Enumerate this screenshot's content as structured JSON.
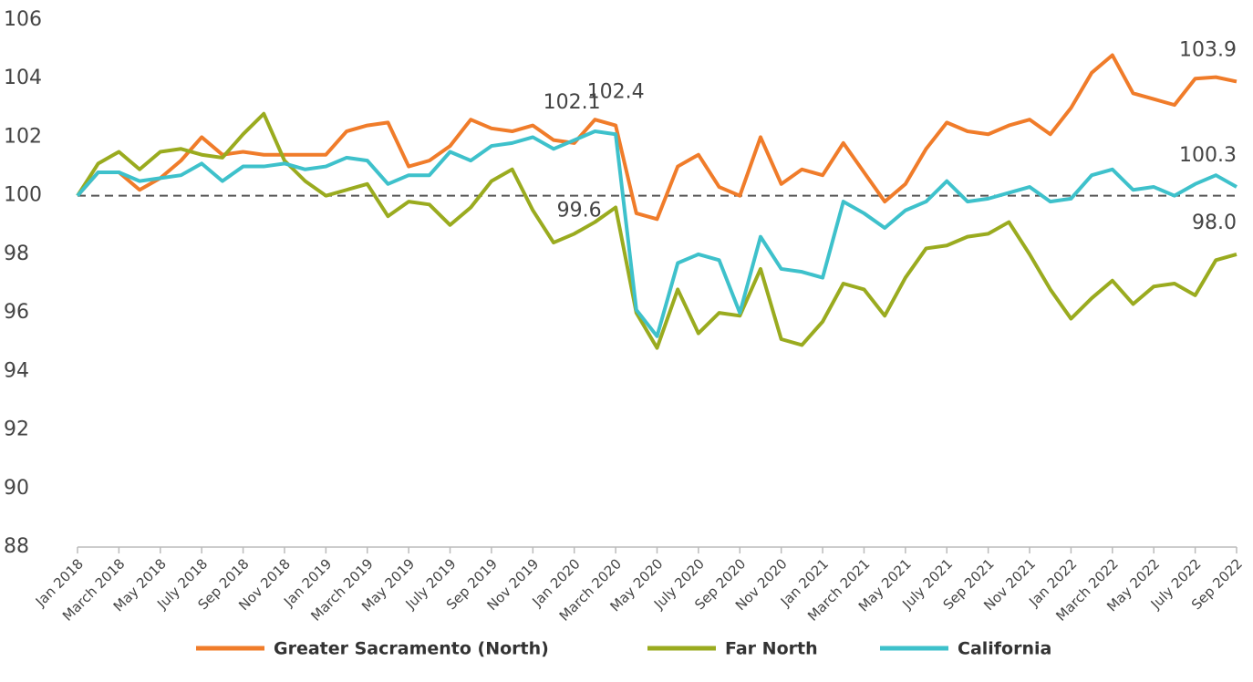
{
  "chart_data": {
    "type": "line",
    "categories": [
      "Jan 2018",
      null,
      "March 2018",
      null,
      "May 2018",
      null,
      "July 2018",
      null,
      "Sep 2018",
      null,
      "Nov 2018",
      null,
      "Jan 2019",
      null,
      "March 2019",
      null,
      "May 2019",
      null,
      "July 2019",
      null,
      "Sep 2019",
      null,
      "Nov 2019",
      null,
      "Jan 2020",
      null,
      "March 2020",
      null,
      "May 2020",
      null,
      "July 2020",
      null,
      "Sep 2020",
      null,
      "Nov 2020",
      null,
      "Jan 2021",
      null,
      "March 2021",
      null,
      "May 2021",
      null,
      "July 2021",
      null,
      "Sep 2021",
      null,
      "Nov 2021",
      null,
      "Jan 2022",
      null,
      "March 2022",
      null,
      "May 2022",
      null,
      "July 2022",
      null,
      "Sep 2022"
    ],
    "series": [
      {
        "name": "Greater Sacramento (North)",
        "color": "#f07c2a",
        "values": [
          100,
          100.8,
          100.8,
          100.2,
          100.6,
          101.2,
          102.0,
          101.4,
          101.5,
          101.4,
          101.4,
          101.4,
          101.4,
          102.2,
          102.4,
          102.5,
          101.0,
          101.2,
          101.7,
          102.6,
          102.3,
          102.2,
          102.4,
          101.9,
          101.8,
          102.6,
          102.4,
          99.4,
          99.2,
          101.0,
          101.4,
          100.3,
          100.0,
          102.0,
          100.4,
          100.9,
          100.7,
          101.8,
          100.8,
          99.8,
          100.4,
          101.6,
          102.5,
          102.2,
          102.1,
          102.4,
          102.6,
          102.1,
          103.0,
          104.2,
          104.8,
          103.5,
          103.3,
          103.1,
          104.0,
          104.05,
          103.9
        ],
        "value_labels": [
          null,
          null,
          null,
          null,
          null,
          null,
          null,
          null,
          null,
          null,
          null,
          null,
          null,
          null,
          null,
          null,
          null,
          null,
          null,
          null,
          null,
          null,
          null,
          null,
          null,
          null,
          "102.4",
          null,
          null,
          null,
          null,
          null,
          null,
          null,
          null,
          null,
          null,
          null,
          null,
          null,
          null,
          null,
          null,
          null,
          null,
          null,
          null,
          null,
          null,
          null,
          null,
          null,
          null,
          null,
          null,
          null,
          "103.9"
        ]
      },
      {
        "name": "Far North",
        "color": "#9aab1f",
        "values": [
          100,
          101.1,
          101.5,
          100.9,
          101.5,
          101.6,
          101.4,
          101.3,
          102.1,
          102.8,
          101.2,
          100.5,
          100.0,
          100.2,
          100.4,
          99.3,
          99.8,
          99.7,
          99.0,
          99.6,
          100.5,
          100.9,
          99.5,
          98.4,
          98.7,
          99.1,
          99.6,
          96.0,
          94.8,
          96.8,
          95.3,
          96.0,
          95.9,
          97.5,
          95.1,
          94.9,
          95.7,
          97.0,
          96.8,
          95.9,
          97.2,
          98.2,
          98.3,
          98.6,
          98.7,
          99.1,
          98.0,
          96.8,
          95.8,
          96.5,
          97.1,
          96.3,
          96.9,
          97.0,
          96.6,
          97.8,
          98.0
        ],
        "value_labels": [
          null,
          null,
          null,
          null,
          null,
          null,
          null,
          null,
          null,
          null,
          null,
          null,
          null,
          null,
          null,
          null,
          null,
          null,
          null,
          null,
          null,
          null,
          null,
          null,
          null,
          null,
          "99.6",
          null,
          null,
          null,
          null,
          null,
          null,
          null,
          null,
          null,
          null,
          null,
          null,
          null,
          null,
          null,
          null,
          null,
          null,
          null,
          null,
          null,
          null,
          null,
          null,
          null,
          null,
          null,
          null,
          null,
          "98.0"
        ]
      },
      {
        "name": "California",
        "color": "#3ec1cb",
        "values": [
          100,
          100.8,
          100.8,
          100.5,
          100.6,
          100.7,
          101.1,
          100.5,
          101.0,
          101.0,
          101.1,
          100.9,
          101.0,
          101.3,
          101.2,
          100.4,
          100.7,
          100.7,
          101.5,
          101.2,
          101.7,
          101.8,
          102.0,
          101.6,
          101.9,
          102.2,
          102.1,
          96.1,
          95.2,
          97.7,
          98.0,
          97.8,
          96.0,
          98.6,
          97.5,
          97.4,
          97.2,
          99.8,
          99.4,
          98.9,
          99.5,
          99.8,
          100.5,
          99.8,
          99.9,
          100.1,
          100.3,
          99.8,
          99.9,
          100.7,
          100.9,
          100.2,
          100.3,
          100.0,
          100.4,
          100.7,
          100.3
        ],
        "value_labels": [
          null,
          null,
          null,
          null,
          null,
          null,
          null,
          null,
          null,
          null,
          null,
          null,
          null,
          null,
          null,
          null,
          null,
          null,
          null,
          null,
          null,
          null,
          null,
          null,
          null,
          null,
          "102.1",
          null,
          null,
          null,
          null,
          null,
          null,
          null,
          null,
          null,
          null,
          null,
          null,
          null,
          null,
          null,
          null,
          null,
          null,
          null,
          null,
          null,
          null,
          null,
          null,
          null,
          null,
          null,
          null,
          null,
          "100.3"
        ]
      }
    ],
    "ylim": [
      88,
      106
    ],
    "yticks": [
      88,
      90,
      92,
      94,
      96,
      98,
      100,
      102,
      104,
      106
    ],
    "hline": 100,
    "legend": "bottom"
  }
}
